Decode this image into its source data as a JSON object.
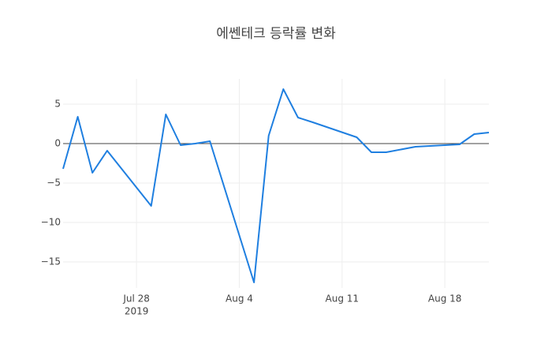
{
  "chart_data": {
    "type": "line",
    "title": "에쎈테크 등락률 변화",
    "x": [
      "2019-07-23",
      "2019-07-24",
      "2019-07-25",
      "2019-07-26",
      "2019-07-29",
      "2019-07-30",
      "2019-07-31",
      "2019-08-01",
      "2019-08-02",
      "2019-08-05",
      "2019-08-06",
      "2019-08-07",
      "2019-08-08",
      "2019-08-09",
      "2019-08-12",
      "2019-08-13",
      "2019-08-14",
      "2019-08-16",
      "2019-08-19",
      "2019-08-20",
      "2019-08-21"
    ],
    "series": [
      {
        "name": "등락률",
        "color": "#1f7fe0",
        "values": [
          -3.2,
          3.4,
          -3.7,
          -0.9,
          -7.9,
          3.7,
          -0.2,
          0.0,
          0.3,
          -17.6,
          1.0,
          6.9,
          3.3,
          2.7,
          0.8,
          -1.1,
          -1.1,
          -0.4,
          -0.1,
          1.2,
          1.4
        ]
      }
    ],
    "xlim": [
      "2019-07-23",
      "2019-08-21"
    ],
    "xticks": [
      {
        "value": "2019-07-28",
        "label": "Jul 28"
      },
      {
        "value": "2019-08-04",
        "label": "Aug 4"
      },
      {
        "value": "2019-08-11",
        "label": "Aug 11"
      },
      {
        "value": "2019-08-18",
        "label": "Aug 18"
      }
    ],
    "x_year_label": "2019",
    "ylim": [
      -18.3,
      8.2
    ],
    "yticks": [
      5,
      0,
      {
        "value": -5,
        "label": "−5"
      },
      {
        "value": -10,
        "label": "−10"
      },
      {
        "value": -15,
        "label": "−15"
      }
    ],
    "grid": true,
    "zero_line": true
  }
}
